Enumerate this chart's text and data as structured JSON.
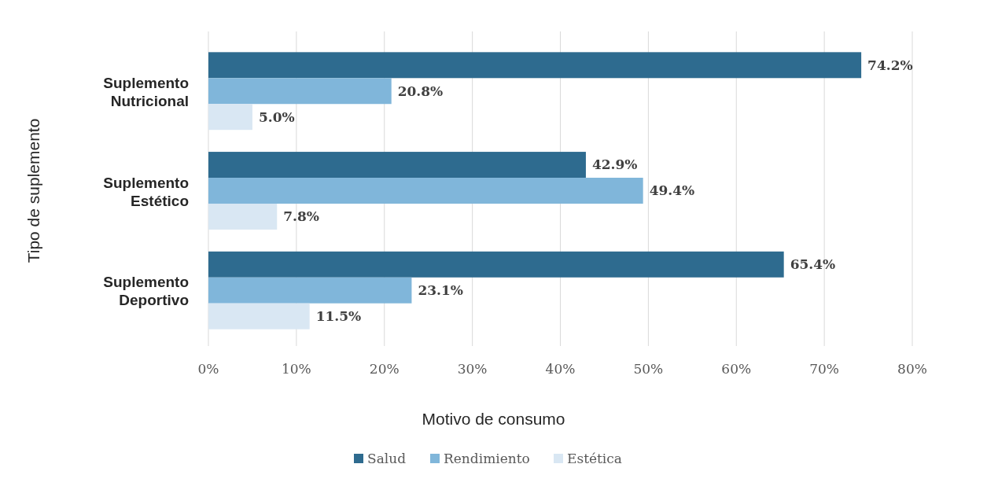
{
  "chart_data": {
    "type": "bar",
    "orientation": "horizontal",
    "xlabel": "Motivo de consumo",
    "ylabel": "Tipo de suplemento",
    "categories": [
      "Suplemento Nutricional",
      "Suplemento Estético",
      "Suplemento Deportivo"
    ],
    "series": [
      {
        "name": "Salud",
        "color": "#2e6b8f",
        "values": [
          74.2,
          42.9,
          65.4
        ],
        "value_labels": [
          "74.2%",
          "42.9%",
          "65.4%"
        ]
      },
      {
        "name": "Rendimiento",
        "color": "#80b6da",
        "values": [
          20.8,
          49.4,
          23.1
        ],
        "value_labels": [
          "20.8%",
          "49.4%",
          "23.1%"
        ]
      },
      {
        "name": "Estética",
        "color": "#d9e7f3",
        "values": [
          5.0,
          7.8,
          11.5
        ],
        "value_labels": [
          "5.0%",
          "7.8%",
          "11.5%"
        ]
      }
    ],
    "xlim": [
      0,
      80
    ],
    "xticks": [
      {
        "value": 0,
        "label": "0%"
      },
      {
        "value": 10,
        "label": "10%"
      },
      {
        "value": 20,
        "label": "20%"
      },
      {
        "value": 30,
        "label": "30%"
      },
      {
        "value": 40,
        "label": "40%"
      },
      {
        "value": 50,
        "label": "50%"
      },
      {
        "value": 60,
        "label": "60%"
      },
      {
        "value": 70,
        "label": "70%"
      },
      {
        "value": 80,
        "label": "80%"
      }
    ],
    "grid": "x",
    "legend": "bottom"
  }
}
